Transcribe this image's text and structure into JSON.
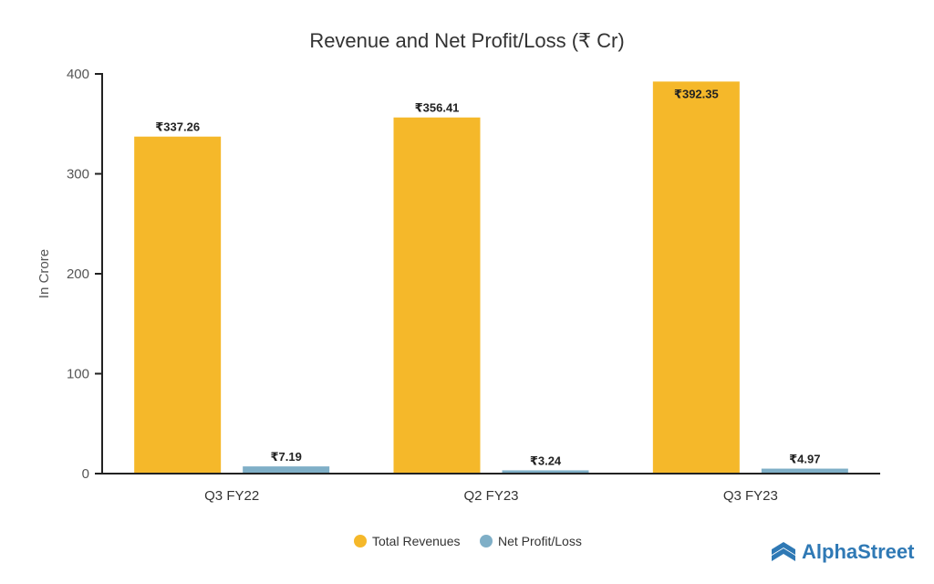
{
  "chart_data": {
    "type": "bar",
    "title": "Revenue and Net Profit/Loss (₹ Cr)",
    "xlabel": "",
    "ylabel": "In Crore",
    "ylim": [
      0,
      400
    ],
    "yticks": [
      0,
      100,
      200,
      300,
      400
    ],
    "categories": [
      "Q3 FY22",
      "Q2 FY23",
      "Q3 FY23"
    ],
    "series": [
      {
        "name": "Total Revenues",
        "color": "#f5b82a",
        "values": [
          337.26,
          356.41,
          392.35
        ],
        "labels": [
          "₹337.26",
          "₹356.41",
          "₹392.35"
        ]
      },
      {
        "name": "Net Profit/Loss",
        "color": "#7fafc7",
        "values": [
          7.19,
          3.24,
          4.97
        ],
        "labels": [
          "₹7.19",
          "₹3.24",
          "₹4.97"
        ]
      }
    ],
    "legend_position": "bottom-center",
    "grid": false
  },
  "brand": {
    "name": "AlphaStreet",
    "color": "#2f79b5"
  }
}
